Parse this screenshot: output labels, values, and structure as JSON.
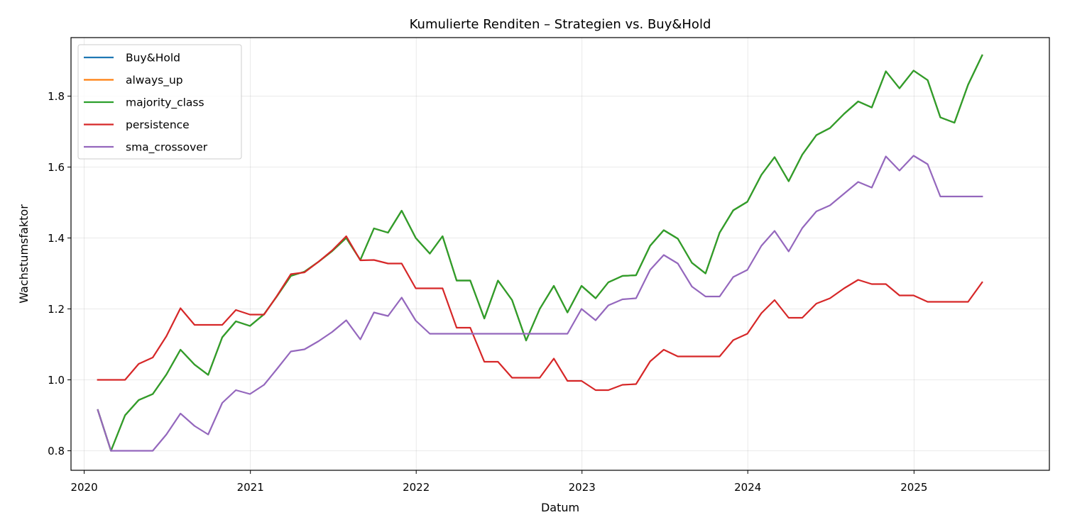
{
  "chart_data": {
    "type": "line",
    "title": "Kumulierte Renditen – Strategien vs. Buy&Hold",
    "xlabel": "Datum",
    "ylabel": "Wachstumsfaktor",
    "x_ticks": [
      "2020",
      "2021",
      "2022",
      "2023",
      "2024",
      "2025"
    ],
    "y_ticks": [
      "0.8",
      "1.0",
      "1.2",
      "1.4",
      "1.6",
      "1.8"
    ],
    "ylim": [
      0.745,
      1.965
    ],
    "xlim": [
      "2019-12-03",
      "2025-10-26"
    ],
    "grid": true,
    "legend_position": "top-left",
    "x": [
      "2020-01-31",
      "2020-02-29",
      "2020-03-31",
      "2020-04-30",
      "2020-05-31",
      "2020-06-30",
      "2020-07-31",
      "2020-08-31",
      "2020-09-30",
      "2020-10-31",
      "2020-11-30",
      "2020-12-31",
      "2021-01-31",
      "2021-02-28",
      "2021-03-31",
      "2021-04-30",
      "2021-05-31",
      "2021-06-30",
      "2021-07-31",
      "2021-08-31",
      "2021-09-30",
      "2021-10-31",
      "2021-11-30",
      "2021-12-31",
      "2022-01-31",
      "2022-02-28",
      "2022-03-31",
      "2022-04-30",
      "2022-05-31",
      "2022-06-30",
      "2022-07-31",
      "2022-08-31",
      "2022-09-30",
      "2022-10-31",
      "2022-11-30",
      "2022-12-31",
      "2023-01-31",
      "2023-02-28",
      "2023-03-31",
      "2023-04-30",
      "2023-05-31",
      "2023-06-30",
      "2023-07-31",
      "2023-08-31",
      "2023-09-30",
      "2023-10-31",
      "2023-11-30",
      "2023-12-31",
      "2024-01-31",
      "2024-02-29",
      "2024-03-31",
      "2024-04-30",
      "2024-05-31",
      "2024-06-30",
      "2024-07-31",
      "2024-08-31",
      "2024-09-30",
      "2024-10-31",
      "2024-11-30",
      "2024-12-31",
      "2025-01-31",
      "2025-02-28",
      "2025-03-31",
      "2025-04-30",
      "2025-05-31"
    ],
    "series": [
      {
        "name": "Buy&Hold",
        "color": "#1f77b4",
        "values": [
          0.915,
          0.8,
          0.9,
          0.943,
          0.96,
          1.015,
          1.085,
          1.043,
          1.014,
          1.12,
          1.165,
          1.152,
          1.185,
          1.235,
          1.293,
          1.305,
          1.333,
          1.363,
          1.4,
          1.338,
          1.427,
          1.415,
          1.477,
          1.4,
          1.356,
          1.405,
          1.28,
          1.28,
          1.173,
          1.28,
          1.225,
          1.111,
          1.2,
          1.265,
          1.19,
          1.265,
          1.23,
          1.275,
          1.293,
          1.295,
          1.378,
          1.422,
          1.398,
          1.33,
          1.3,
          1.415,
          1.478,
          1.502,
          1.578,
          1.628,
          1.56,
          1.635,
          1.69,
          1.71,
          1.75,
          1.785,
          1.768,
          1.87,
          1.822,
          1.872,
          1.845,
          1.74,
          1.725,
          1.832,
          1.915
        ]
      },
      {
        "name": "always_up",
        "color": "#ff7f0e",
        "values": [
          0.915,
          0.8,
          0.9,
          0.943,
          0.96,
          1.015,
          1.085,
          1.043,
          1.014,
          1.12,
          1.165,
          1.152,
          1.185,
          1.235,
          1.293,
          1.305,
          1.333,
          1.363,
          1.4,
          1.338,
          1.427,
          1.415,
          1.477,
          1.4,
          1.356,
          1.405,
          1.28,
          1.28,
          1.173,
          1.28,
          1.225,
          1.111,
          1.2,
          1.265,
          1.19,
          1.265,
          1.23,
          1.275,
          1.293,
          1.295,
          1.378,
          1.422,
          1.398,
          1.33,
          1.3,
          1.415,
          1.478,
          1.502,
          1.578,
          1.628,
          1.56,
          1.635,
          1.69,
          1.71,
          1.75,
          1.785,
          1.768,
          1.87,
          1.822,
          1.872,
          1.845,
          1.74,
          1.725,
          1.832,
          1.915
        ]
      },
      {
        "name": "majority_class",
        "color": "#2ca02c",
        "values": [
          0.915,
          0.8,
          0.9,
          0.943,
          0.96,
          1.015,
          1.085,
          1.043,
          1.014,
          1.12,
          1.165,
          1.152,
          1.185,
          1.235,
          1.293,
          1.305,
          1.333,
          1.363,
          1.4,
          1.338,
          1.427,
          1.415,
          1.477,
          1.4,
          1.356,
          1.405,
          1.28,
          1.28,
          1.173,
          1.28,
          1.225,
          1.111,
          1.2,
          1.265,
          1.19,
          1.265,
          1.23,
          1.275,
          1.293,
          1.295,
          1.378,
          1.422,
          1.398,
          1.33,
          1.3,
          1.415,
          1.478,
          1.502,
          1.578,
          1.628,
          1.56,
          1.635,
          1.69,
          1.71,
          1.75,
          1.785,
          1.768,
          1.87,
          1.822,
          1.872,
          1.845,
          1.74,
          1.725,
          1.832,
          1.915
        ]
      },
      {
        "name": "persistence",
        "color": "#d62728",
        "values": [
          1.0,
          1.0,
          1.0,
          1.045,
          1.063,
          1.123,
          1.202,
          1.155,
          1.155,
          1.155,
          1.197,
          1.184,
          1.184,
          1.236,
          1.298,
          1.303,
          1.333,
          1.365,
          1.405,
          1.337,
          1.338,
          1.328,
          1.328,
          1.258,
          1.258,
          1.258,
          1.147,
          1.147,
          1.051,
          1.051,
          1.006,
          1.006,
          1.006,
          1.06,
          0.997,
          0.997,
          0.971,
          0.971,
          0.986,
          0.988,
          1.052,
          1.085,
          1.066,
          1.066,
          1.066,
          1.066,
          1.112,
          1.13,
          1.188,
          1.225,
          1.175,
          1.175,
          1.215,
          1.23,
          1.258,
          1.282,
          1.27,
          1.27,
          1.238,
          1.238,
          1.22,
          1.22,
          1.22,
          1.22,
          1.275
        ]
      },
      {
        "name": "sma_crossover",
        "color": "#9467bd",
        "values": [
          0.915,
          0.8,
          0.8,
          0.8,
          0.8,
          0.846,
          0.905,
          0.87,
          0.846,
          0.935,
          0.971,
          0.96,
          0.986,
          1.03,
          1.08,
          1.086,
          1.109,
          1.135,
          1.168,
          1.114,
          1.19,
          1.18,
          1.232,
          1.167,
          1.13,
          1.13,
          1.13,
          1.13,
          1.13,
          1.13,
          1.13,
          1.13,
          1.13,
          1.13,
          1.13,
          1.2,
          1.168,
          1.21,
          1.227,
          1.23,
          1.31,
          1.352,
          1.328,
          1.263,
          1.235,
          1.235,
          1.29,
          1.31,
          1.378,
          1.42,
          1.362,
          1.428,
          1.475,
          1.492,
          1.525,
          1.558,
          1.542,
          1.63,
          1.59,
          1.632,
          1.608,
          1.517,
          1.517,
          1.517,
          1.517
        ]
      }
    ]
  }
}
